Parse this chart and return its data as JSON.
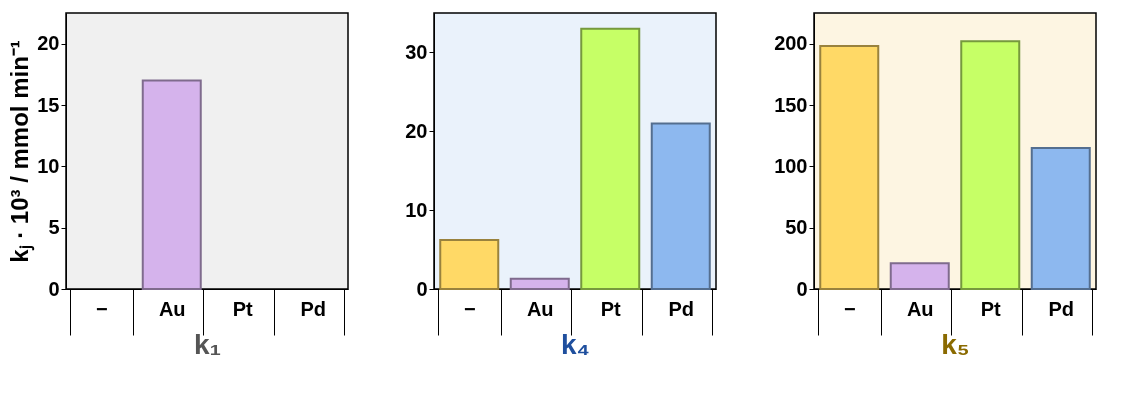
{
  "chart_data": [
    {
      "type": "bar",
      "categories": [
        "−",
        "Au",
        "Pt",
        "Pd"
      ],
      "values": [
        null,
        17,
        null,
        null
      ],
      "colors": [
        "#ffd966",
        "#d5b3ec",
        "#c6ff66",
        "#8db8ef"
      ],
      "ylim": [
        0,
        22.5
      ],
      "yticks": [
        0,
        5,
        10,
        15,
        20
      ],
      "ylabel": "kⱼ · 10³ / mmol min⁻¹",
      "xlabel": "k₁",
      "grid": false
    },
    {
      "type": "bar",
      "categories": [
        "−",
        "Au",
        "Pt",
        "Pd"
      ],
      "values": [
        6.2,
        1.3,
        33,
        21
      ],
      "colors": [
        "#ffd966",
        "#d5b3ec",
        "#c6ff66",
        "#8db8ef"
      ],
      "ylim": [
        0,
        35
      ],
      "yticks": [
        0,
        10,
        20,
        30
      ],
      "xlabel": "k₄",
      "grid": false
    },
    {
      "type": "bar",
      "categories": [
        "−",
        "Au",
        "Pt",
        "Pd"
      ],
      "values": [
        198,
        21,
        202,
        115
      ],
      "colors": [
        "#ffd966",
        "#d5b3ec",
        "#c6ff66",
        "#8db8ef"
      ],
      "ylim": [
        0,
        225
      ],
      "yticks": [
        0,
        50,
        100,
        150,
        200
      ],
      "xlabel": "k₅",
      "grid": false
    }
  ]
}
